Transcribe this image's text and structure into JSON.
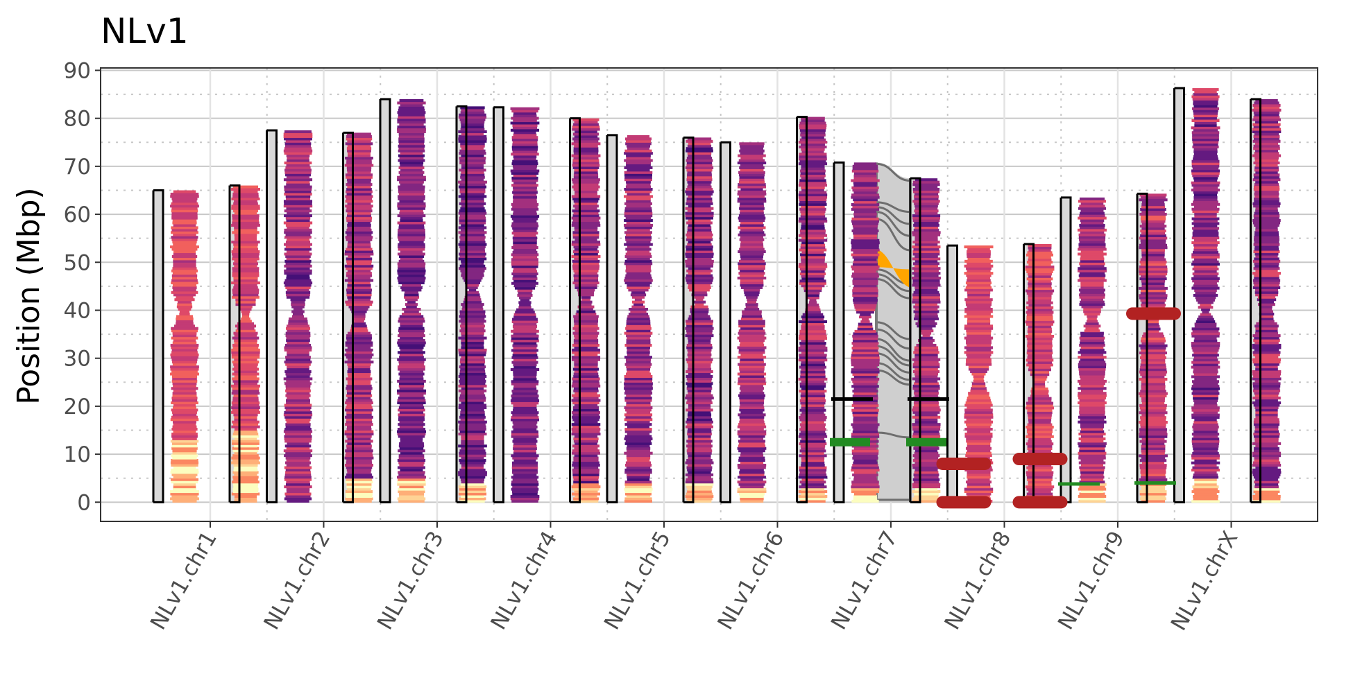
{
  "chart_data": {
    "type": "ideogram",
    "title": "NLv1",
    "ylabel": "Position (Mbp)",
    "xlabel": "",
    "ylim": [
      -4,
      90.5
    ],
    "yticks": [
      0,
      10,
      20,
      30,
      40,
      50,
      60,
      70,
      80,
      90
    ],
    "grid": true,
    "palette": [
      "#fcfdbf",
      "#fed395",
      "#feaf78",
      "#fb8761",
      "#f1605d",
      "#de4968",
      "#c33b75",
      "#a3307e",
      "#822681",
      "#641a80",
      "#451077"
    ],
    "chromosomes": [
      {
        "label": "NLv1.chr1",
        "haps": [
          {
            "length": 65.0,
            "side": "left",
            "lo": 0.0,
            "hi": 0.45,
            "cen": 40,
            "bottom_light": 13
          },
          {
            "length": 66.0,
            "side": "right",
            "lo": 0.05,
            "hi": 0.45,
            "cen": 39,
            "bottom_light": 15
          }
        ]
      },
      {
        "label": "NLv1.chr2",
        "haps": [
          {
            "length": 77.5,
            "side": "left",
            "lo": 0.2,
            "hi": 0.9,
            "cen": 40,
            "bottom_light": 0
          },
          {
            "length": 77.0,
            "side": "right",
            "lo": 0.15,
            "hi": 0.85,
            "cen": 38,
            "bottom_light": 5
          }
        ]
      },
      {
        "label": "NLv1.chr3",
        "haps": [
          {
            "length": 84.0,
            "side": "left",
            "lo": 0.35,
            "hi": 0.95,
            "cen": 42,
            "bottom_light": 5
          },
          {
            "length": 82.5,
            "side": "right",
            "lo": 0.35,
            "hi": 0.95,
            "cen": 44,
            "bottom_light": 4
          }
        ]
      },
      {
        "label": "NLv1.chr4",
        "haps": [
          {
            "length": 82.3,
            "side": "left",
            "lo": 0.3,
            "hi": 0.95,
            "cen": 42,
            "bottom_light": 0
          },
          {
            "length": 80.0,
            "side": "right",
            "lo": 0.2,
            "hi": 0.9,
            "cen": 42,
            "bottom_light": 4
          }
        ]
      },
      {
        "label": "NLv1.chr5",
        "haps": [
          {
            "length": 76.5,
            "side": "left",
            "lo": 0.2,
            "hi": 0.9,
            "cen": 42,
            "bottom_light": 4
          },
          {
            "length": 76.0,
            "side": "right",
            "lo": 0.2,
            "hi": 0.9,
            "cen": 42,
            "bottom_light": 4
          }
        ]
      },
      {
        "label": "NLv1.chr6",
        "haps": [
          {
            "length": 75.0,
            "side": "left",
            "lo": 0.2,
            "hi": 0.85,
            "cen": 42,
            "bottom_light": 3
          },
          {
            "length": 80.3,
            "side": "right",
            "lo": 0.2,
            "hi": 0.9,
            "cen": 42,
            "bottom_light": 3
          }
        ]
      },
      {
        "label": "NLv1.chr7",
        "haps": [
          {
            "length": 70.8,
            "side": "left",
            "lo": 0.2,
            "hi": 0.85,
            "cen": 38,
            "bottom_light": 3
          },
          {
            "length": 67.5,
            "side": "right",
            "lo": 0.2,
            "hi": 0.85,
            "cen": 35,
            "bottom_light": 3
          }
        ]
      },
      {
        "label": "NLv1.chr8",
        "haps": [
          {
            "length": 53.5,
            "side": "left",
            "lo": 0.0,
            "hi": 0.5,
            "cen": 25,
            "bottom_light": 0
          },
          {
            "length": 53.8,
            "side": "right",
            "lo": 0.0,
            "hi": 0.5,
            "cen": 25,
            "bottom_light": 0
          }
        ]
      },
      {
        "label": "NLv1.chr9",
        "haps": [
          {
            "length": 63.5,
            "side": "left",
            "lo": 0.15,
            "hi": 0.8,
            "cen": 38,
            "bottom_light": 4
          },
          {
            "length": 64.3,
            "side": "right",
            "lo": 0.1,
            "hi": 0.75,
            "cen": 37,
            "bottom_light": 4
          }
        ]
      },
      {
        "label": "NLv1.chrX",
        "haps": [
          {
            "length": 86.3,
            "side": "left",
            "lo": 0.25,
            "hi": 0.9,
            "cen": 40,
            "bottom_light": 5
          },
          {
            "length": 84.0,
            "side": "right",
            "lo": 0.2,
            "hi": 0.85,
            "cen": 40,
            "bottom_light": 3
          }
        ]
      }
    ],
    "synteny": {
      "chromosome": "NLv1.chr7",
      "links": [
        [
          70.5,
          67.0
        ],
        [
          62.5,
          60.5
        ],
        [
          61.5,
          58.0
        ],
        [
          60.5,
          55.5
        ],
        [
          59.0,
          52.5
        ],
        [
          48.5,
          45.5
        ],
        [
          47.5,
          44.0
        ],
        [
          46.5,
          42.5
        ],
        [
          37.5,
          34.0
        ],
        [
          36.0,
          32.0
        ],
        [
          34.0,
          29.5
        ],
        [
          32.5,
          28.5
        ],
        [
          31.0,
          27.0
        ],
        [
          29.0,
          25.5
        ],
        [
          27.5,
          24.5
        ],
        [
          14.5,
          13.5
        ],
        [
          0.5,
          0.5
        ]
      ],
      "inversion": {
        "left": [
          49.0,
          53.0
        ],
        "right": [
          44.5,
          48.5
        ],
        "color": "#ffa500"
      }
    },
    "features": [
      {
        "chromosome": "NLv1.chr7",
        "side": "both",
        "y": 21.5,
        "color": "#000000",
        "kind": "line"
      },
      {
        "chromosome": "NLv1.chr7",
        "side": "both",
        "y": 12.5,
        "color": "#228b22",
        "kind": "thick"
      },
      {
        "chromosome": "NLv1.chr8",
        "side": "left",
        "y": 8.0,
        "color": "#b22222",
        "kind": "pill"
      },
      {
        "chromosome": "NLv1.chr8",
        "side": "left",
        "y": 0.0,
        "color": "#b22222",
        "kind": "pill"
      },
      {
        "chromosome": "NLv1.chr8",
        "side": "right",
        "y": 9.0,
        "color": "#b22222",
        "kind": "pill"
      },
      {
        "chromosome": "NLv1.chr8",
        "side": "right",
        "y": 0.0,
        "color": "#b22222",
        "kind": "pill"
      },
      {
        "chromosome": "NLv1.chr9",
        "side": "left",
        "y": 3.8,
        "color": "#228b22",
        "kind": "line"
      },
      {
        "chromosome": "NLv1.chr9",
        "side": "right",
        "y": 4.0,
        "color": "#228b22",
        "kind": "line"
      },
      {
        "chromosome": "NLv1.chr9",
        "side": "right",
        "y": 39.3,
        "color": "#b22222",
        "kind": "pill"
      }
    ]
  }
}
